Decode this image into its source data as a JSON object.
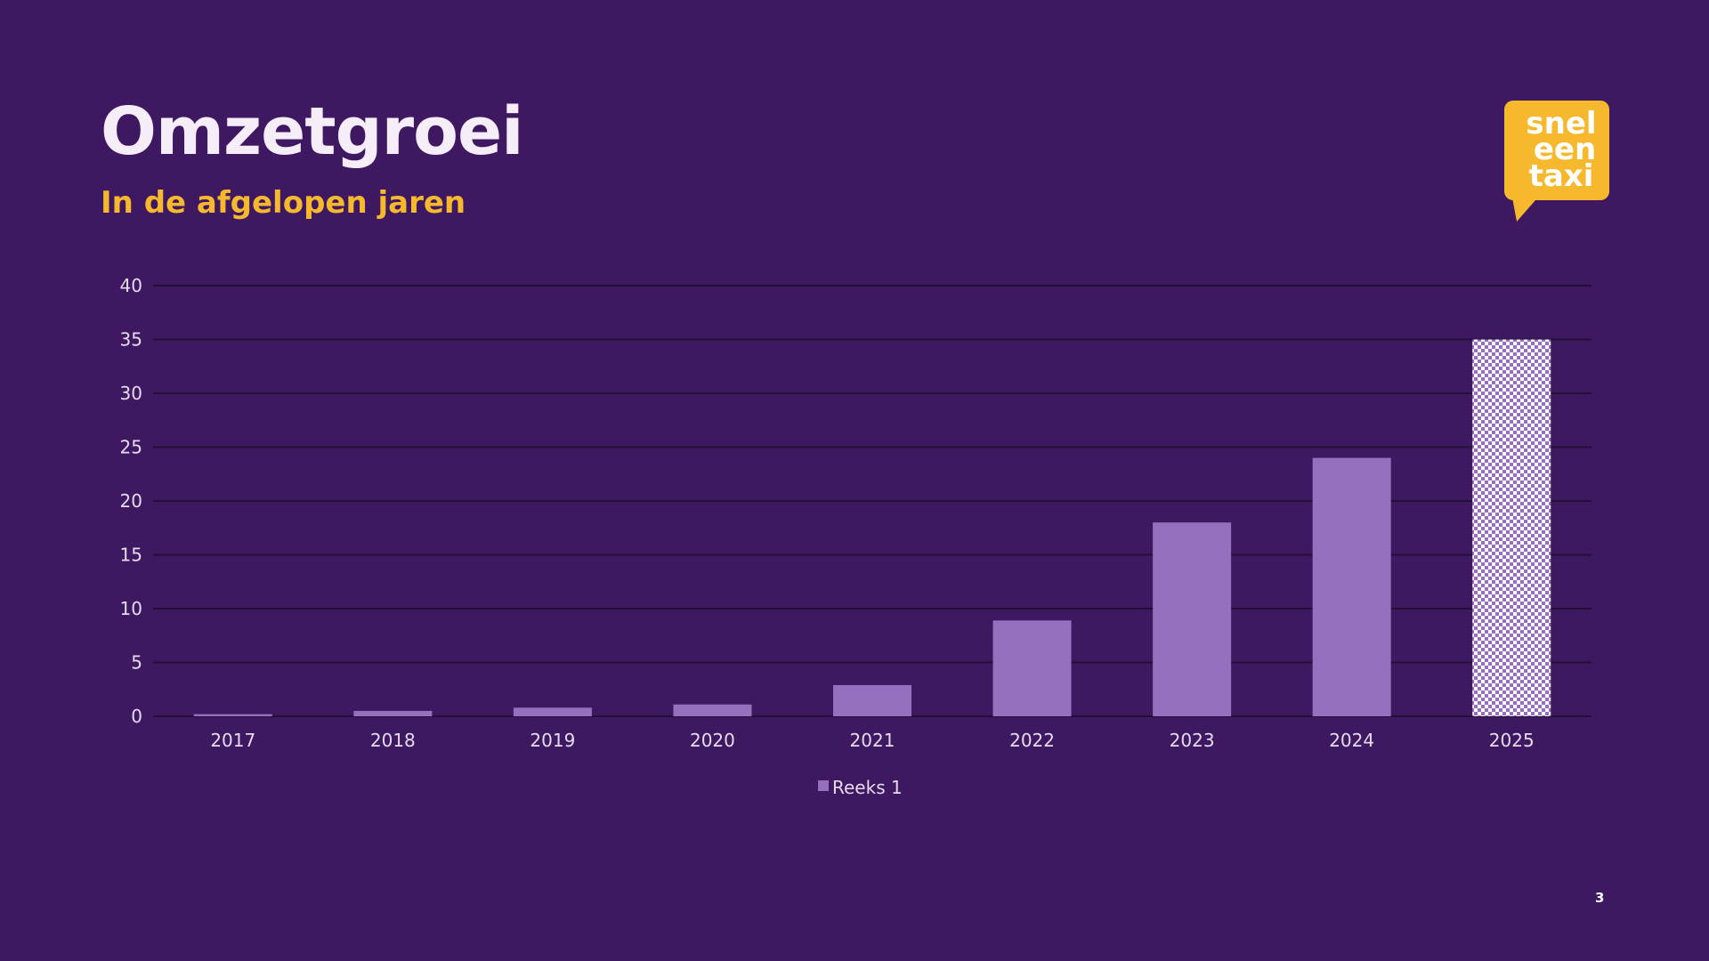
{
  "slide": {
    "title": "Omzetgroei",
    "subtitle": "In de afgelopen jaren",
    "page_number": "3"
  },
  "logo": {
    "lines": [
      "snel",
      "een",
      "taxi"
    ],
    "color": "#f6b82c"
  },
  "colors": {
    "background": "#3f1862",
    "bar": "#9670be",
    "bar_projected_pattern": "checkered purple/white",
    "title": "#f5eef8",
    "subtitle": "#f6b82c"
  },
  "chart_data": {
    "type": "bar",
    "categories": [
      "2017",
      "2018",
      "2019",
      "2020",
      "2021",
      "2022",
      "2023",
      "2024",
      "2025"
    ],
    "series": [
      {
        "name": "Reeks 1",
        "values": [
          0.2,
          0.5,
          0.8,
          1.1,
          2.9,
          8.9,
          18,
          24,
          35
        ]
      }
    ],
    "projected_categories": [
      "2025"
    ],
    "y_ticks": [
      "0",
      "5",
      "10",
      "15",
      "20",
      "25",
      "30",
      "35",
      "40"
    ],
    "ylim": [
      0,
      40
    ],
    "grid": true,
    "legend_position": "bottom"
  }
}
